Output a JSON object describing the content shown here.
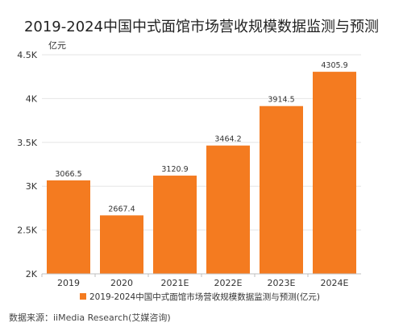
{
  "chart_data": {
    "type": "bar",
    "title": "2019-2024中国中式面馆市场营收规模数据监测与预测",
    "ylabel": "亿元",
    "categories": [
      "2019",
      "2020",
      "2021E",
      "2022E",
      "2023E",
      "2024E"
    ],
    "values": [
      3066.5,
      2667.4,
      3120.9,
      3464.2,
      3914.5,
      4305.9
    ],
    "value_labels": [
      "3066.5",
      "2667.4",
      "3120.9",
      "3464.2",
      "3914.5",
      "4305.9"
    ],
    "yticks": [
      {
        "value": 2000,
        "label": "2K"
      },
      {
        "value": 2500,
        "label": "2.5K"
      },
      {
        "value": 3000,
        "label": "3K"
      },
      {
        "value": 3500,
        "label": "3.5K"
      },
      {
        "value": 4000,
        "label": "4K"
      },
      {
        "value": 4500,
        "label": "4.5K"
      }
    ],
    "ylim": [
      2000,
      4500
    ],
    "grid": true,
    "legend_position": "bottom",
    "series": [
      {
        "name": "2019-2024中国中式面馆市场营收规模数据监测与预测(亿元)",
        "color": "#f47b20"
      }
    ]
  },
  "source_text": "数据来源：iiMedia Research(艾媒咨询)"
}
